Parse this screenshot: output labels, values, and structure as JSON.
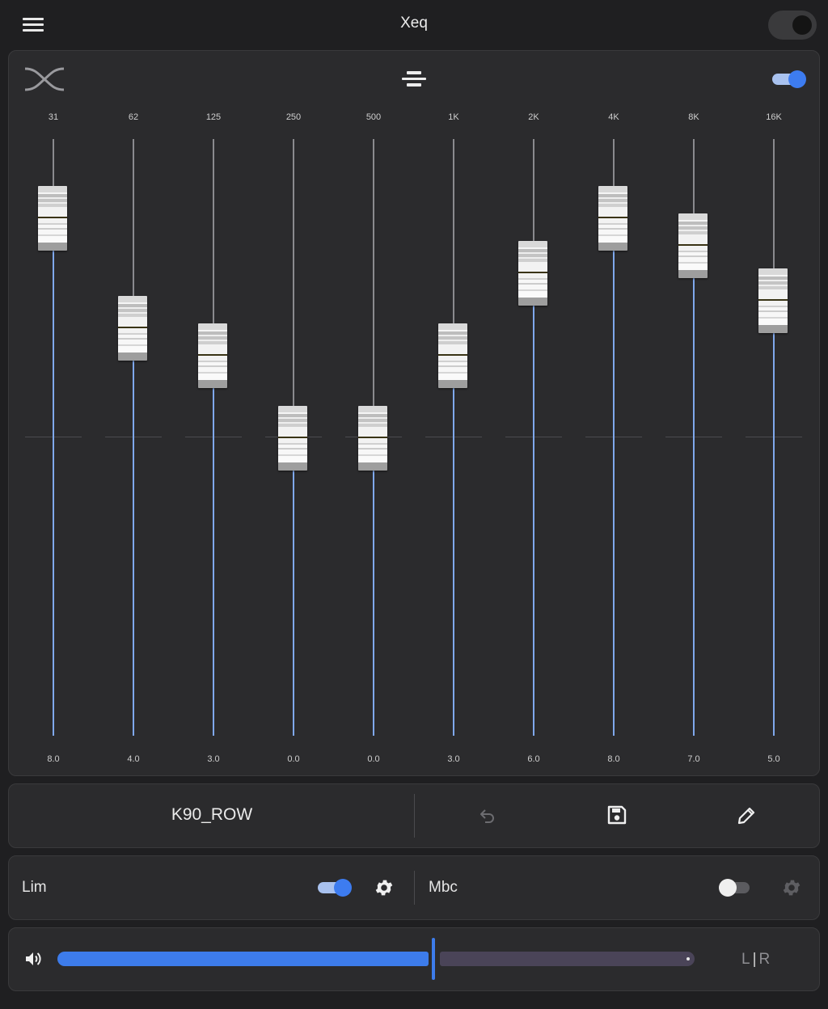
{
  "app": {
    "title": "Xeq",
    "power_on": false
  },
  "eq": {
    "enabled": true,
    "zero_gain": 0,
    "bands": [
      {
        "freq": "31",
        "gain_label": "8.0",
        "gain": 8.0
      },
      {
        "freq": "62",
        "gain_label": "4.0",
        "gain": 4.0
      },
      {
        "freq": "125",
        "gain_label": "3.0",
        "gain": 3.0
      },
      {
        "freq": "250",
        "gain_label": "0.0",
        "gain": 0.0
      },
      {
        "freq": "500",
        "gain_label": "0.0",
        "gain": 0.0
      },
      {
        "freq": "1K",
        "gain_label": "3.0",
        "gain": 3.0
      },
      {
        "freq": "2K",
        "gain_label": "6.0",
        "gain": 6.0
      },
      {
        "freq": "4K",
        "gain_label": "8.0",
        "gain": 8.0
      },
      {
        "freq": "8K",
        "gain_label": "7.0",
        "gain": 7.0
      },
      {
        "freq": "16K",
        "gain_label": "5.0",
        "gain": 5.0
      }
    ]
  },
  "preset": {
    "name": "K90_ROW"
  },
  "effects": {
    "limiter": {
      "label": "Lim",
      "enabled": true
    },
    "mbc": {
      "label": "Mbc",
      "enabled": false
    }
  },
  "volume": {
    "level_fraction": 0.59,
    "balance_label_left": "L",
    "balance_label_right": "R"
  },
  "colors": {
    "accent": "#3d7cf0",
    "track_fill": "#7fa8ec",
    "card_bg": "#2b2b2d",
    "page_bg": "#1f1f21"
  }
}
